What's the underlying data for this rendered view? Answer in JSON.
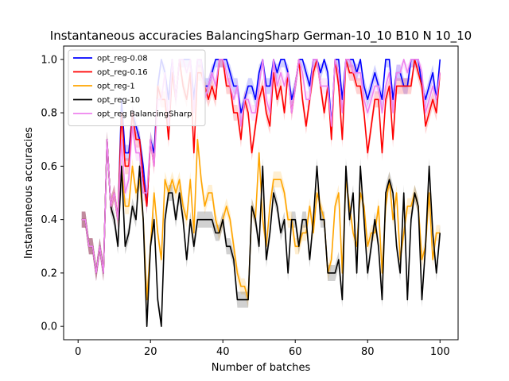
{
  "chart_data": {
    "type": "line",
    "title": "Instantaneous accuracies BalancingSharp German-10_10 B10 N 10_10",
    "xlabel": "Number of batches",
    "ylabel": "Instantaneous accuracies",
    "xlim": [
      -4,
      105
    ],
    "ylim": [
      -0.05,
      1.05
    ],
    "xticks": [
      0,
      20,
      40,
      60,
      80,
      100
    ],
    "yticks": [
      0.0,
      0.2,
      0.4,
      0.6,
      0.8,
      1.0
    ],
    "xtick_labels": [
      "0",
      "20",
      "40",
      "60",
      "80",
      "100"
    ],
    "ytick_labels": [
      "0.0",
      "0.2",
      "0.4",
      "0.6",
      "0.8",
      "1.0"
    ],
    "grid": false,
    "legend_position": "top-left",
    "colors": {
      "opt_reg-0.08": "#0000ff",
      "opt_reg-0.16": "#ff0000",
      "opt_reg-1": "#ffa500",
      "opt_reg-10": "#000000",
      "opt_reg BalancingSharp": "#ee82ee"
    },
    "series": [
      {
        "name": "opt_reg-0.08",
        "color": "#0000ff",
        "x": [
          1,
          2,
          3,
          4,
          5,
          6,
          7,
          8,
          9,
          10,
          11,
          12,
          13,
          14,
          15,
          16,
          17,
          18,
          19,
          20,
          21,
          22,
          23,
          24,
          25,
          26,
          27,
          28,
          29,
          30,
          31,
          32,
          33,
          34,
          35,
          36,
          37,
          38,
          39,
          40,
          41,
          42,
          43,
          44,
          45,
          46,
          47,
          48,
          49,
          50,
          51,
          52,
          53,
          54,
          55,
          56,
          57,
          58,
          59,
          60,
          61,
          62,
          63,
          64,
          65,
          66,
          67,
          68,
          69,
          70,
          71,
          72,
          73,
          74,
          75,
          76,
          77,
          78,
          79,
          80,
          81,
          82,
          83,
          84,
          85,
          86,
          87,
          88,
          89,
          90,
          91,
          92,
          93,
          94,
          95,
          96,
          97,
          98,
          99,
          100
        ],
        "y": [
          0.4,
          0.4,
          0.3,
          0.3,
          0.2,
          0.3,
          0.2,
          0.7,
          0.45,
          0.5,
          0.4,
          0.85,
          0.65,
          0.65,
          0.8,
          0.75,
          0.7,
          0.6,
          0.45,
          0.7,
          0.65,
          0.9,
          1.0,
          0.95,
          0.85,
          1.0,
          0.85,
          1.0,
          1.0,
          1.0,
          1.0,
          0.85,
          1.0,
          1.0,
          0.9,
          0.9,
          0.95,
          1.0,
          1.0,
          1.0,
          1.0,
          0.95,
          0.9,
          0.9,
          0.8,
          0.85,
          0.9,
          0.9,
          0.85,
          0.95,
          1.0,
          0.9,
          0.9,
          1.0,
          0.95,
          1.0,
          1.0,
          0.95,
          0.85,
          0.9,
          1.0,
          1.0,
          0.95,
          0.9,
          1.0,
          1.0,
          0.95,
          1.0,
          0.95,
          0.75,
          1.0,
          1.0,
          0.85,
          1.0,
          1.0,
          1.0,
          0.95,
          1.0,
          0.9,
          0.85,
          0.9,
          0.95,
          0.9,
          0.85,
          1.0,
          1.0,
          0.85,
          0.95,
          0.95,
          0.9,
          0.9,
          1.0,
          1.0,
          1.0,
          0.9,
          0.85,
          0.9,
          0.95,
          0.85,
          1.0
        ]
      },
      {
        "name": "opt_reg-0.16",
        "color": "#ff0000",
        "x": [
          1,
          2,
          3,
          4,
          5,
          6,
          7,
          8,
          9,
          10,
          11,
          12,
          13,
          14,
          15,
          16,
          17,
          18,
          19,
          20,
          21,
          22,
          23,
          24,
          25,
          26,
          27,
          28,
          29,
          30,
          31,
          32,
          33,
          34,
          35,
          36,
          37,
          38,
          39,
          40,
          41,
          42,
          43,
          44,
          45,
          46,
          47,
          48,
          49,
          50,
          51,
          52,
          53,
          54,
          55,
          56,
          57,
          58,
          59,
          60,
          61,
          62,
          63,
          64,
          65,
          66,
          67,
          68,
          69,
          70,
          71,
          72,
          73,
          74,
          75,
          76,
          77,
          78,
          79,
          80,
          81,
          82,
          83,
          84,
          85,
          86,
          87,
          88,
          89,
          90,
          91,
          92,
          93,
          94,
          95,
          96,
          97,
          98,
          99,
          100
        ],
        "y": [
          0.4,
          0.4,
          0.3,
          0.3,
          0.2,
          0.3,
          0.2,
          0.7,
          0.45,
          0.5,
          0.4,
          0.8,
          0.6,
          0.6,
          0.8,
          0.7,
          0.7,
          0.55,
          0.45,
          0.7,
          0.6,
          0.9,
          0.85,
          0.85,
          0.7,
          0.95,
          0.85,
          1.0,
          0.9,
          0.85,
          0.95,
          0.65,
          0.95,
          0.95,
          0.9,
          0.85,
          0.9,
          0.85,
          1.0,
          1.0,
          0.9,
          0.9,
          0.8,
          0.8,
          0.7,
          0.85,
          0.8,
          0.65,
          0.75,
          0.85,
          0.9,
          0.8,
          0.75,
          0.95,
          0.85,
          0.9,
          0.8,
          0.95,
          0.8,
          0.9,
          1.0,
          0.85,
          0.75,
          0.85,
          0.95,
          1.0,
          0.9,
          0.8,
          0.9,
          0.7,
          1.0,
          0.9,
          0.7,
          1.0,
          0.95,
          0.95,
          0.9,
          0.9,
          0.8,
          0.65,
          0.75,
          0.85,
          0.85,
          0.65,
          0.85,
          0.9,
          0.7,
          0.9,
          0.9,
          0.9,
          0.9,
          0.9,
          1.0,
          0.95,
          0.9,
          0.75,
          0.8,
          0.85,
          0.8,
          0.95
        ]
      },
      {
        "name": "opt_reg-1",
        "color": "#ffa500",
        "x": [
          1,
          2,
          3,
          4,
          5,
          6,
          7,
          8,
          9,
          10,
          11,
          12,
          13,
          14,
          15,
          16,
          17,
          18,
          19,
          20,
          21,
          22,
          23,
          24,
          25,
          26,
          27,
          28,
          29,
          30,
          31,
          32,
          33,
          34,
          35,
          36,
          37,
          38,
          39,
          40,
          41,
          42,
          43,
          44,
          45,
          46,
          47,
          48,
          49,
          50,
          51,
          52,
          53,
          54,
          55,
          56,
          57,
          58,
          59,
          60,
          61,
          62,
          63,
          64,
          65,
          66,
          67,
          68,
          69,
          70,
          71,
          72,
          73,
          74,
          75,
          76,
          77,
          78,
          79,
          80,
          81,
          82,
          83,
          84,
          85,
          86,
          87,
          88,
          89,
          90,
          91,
          92,
          93,
          94,
          95,
          96,
          97,
          98,
          99,
          100
        ],
        "y": [
          0.4,
          0.4,
          0.3,
          0.3,
          0.2,
          0.3,
          0.2,
          0.7,
          0.45,
          0.5,
          0.4,
          0.6,
          0.45,
          0.45,
          0.6,
          0.5,
          0.55,
          0.4,
          0.1,
          0.3,
          0.5,
          0.35,
          0.25,
          0.55,
          0.5,
          0.55,
          0.5,
          0.55,
          0.45,
          0.4,
          0.55,
          0.35,
          0.7,
          0.55,
          0.45,
          0.5,
          0.5,
          0.4,
          0.35,
          0.4,
          0.45,
          0.4,
          0.3,
          0.2,
          0.15,
          0.15,
          0.1,
          0.45,
          0.4,
          0.65,
          0.4,
          0.3,
          0.45,
          0.55,
          0.55,
          0.55,
          0.5,
          0.4,
          0.4,
          0.3,
          0.3,
          0.35,
          0.35,
          0.45,
          0.35,
          0.5,
          0.45,
          0.4,
          0.2,
          0.25,
          0.45,
          0.5,
          0.2,
          0.55,
          0.45,
          0.35,
          0.3,
          0.5,
          0.45,
          0.3,
          0.35,
          0.35,
          0.45,
          0.2,
          0.45,
          0.55,
          0.4,
          0.5,
          0.25,
          0.35,
          0.45,
          0.45,
          0.5,
          0.45,
          0.25,
          0.3,
          0.5,
          0.25,
          0.35,
          0.35
        ]
      },
      {
        "name": "opt_reg-10",
        "color": "#000000",
        "x": [
          1,
          2,
          3,
          4,
          5,
          6,
          7,
          8,
          9,
          10,
          11,
          12,
          13,
          14,
          15,
          16,
          17,
          18,
          19,
          20,
          21,
          22,
          23,
          24,
          25,
          26,
          27,
          28,
          29,
          30,
          31,
          32,
          33,
          34,
          35,
          36,
          37,
          38,
          39,
          40,
          41,
          42,
          43,
          44,
          45,
          46,
          47,
          48,
          49,
          50,
          51,
          52,
          53,
          54,
          55,
          56,
          57,
          58,
          59,
          60,
          61,
          62,
          63,
          64,
          65,
          66,
          67,
          68,
          69,
          70,
          71,
          72,
          73,
          74,
          75,
          76,
          77,
          78,
          79,
          80,
          81,
          82,
          83,
          84,
          85,
          86,
          87,
          88,
          89,
          90,
          91,
          92,
          93,
          94,
          95,
          96,
          97,
          98,
          99,
          100
        ],
        "y": [
          0.4,
          0.4,
          0.3,
          0.3,
          0.2,
          0.3,
          0.2,
          0.7,
          0.45,
          0.4,
          0.3,
          0.6,
          0.3,
          0.35,
          0.45,
          0.4,
          0.6,
          0.4,
          0.0,
          0.3,
          0.4,
          0.1,
          0.0,
          0.4,
          0.5,
          0.5,
          0.4,
          0.5,
          0.4,
          0.25,
          0.4,
          0.3,
          0.4,
          0.4,
          0.4,
          0.4,
          0.4,
          0.35,
          0.35,
          0.4,
          0.3,
          0.3,
          0.25,
          0.1,
          0.1,
          0.1,
          0.1,
          0.45,
          0.4,
          0.3,
          0.6,
          0.25,
          0.35,
          0.5,
          0.45,
          0.35,
          0.4,
          0.2,
          0.4,
          0.4,
          0.3,
          0.4,
          0.4,
          0.25,
          0.4,
          0.6,
          0.4,
          0.4,
          0.2,
          0.2,
          0.2,
          0.25,
          0.1,
          0.6,
          0.4,
          0.5,
          0.2,
          0.6,
          0.4,
          0.2,
          0.3,
          0.4,
          0.3,
          0.1,
          0.5,
          0.55,
          0.5,
          0.3,
          0.2,
          0.5,
          0.1,
          0.4,
          0.5,
          0.45,
          0.1,
          0.3,
          0.6,
          0.35,
          0.2,
          0.35
        ]
      },
      {
        "name": "opt_reg BalancingSharp",
        "color": "#ee82ee",
        "x": [
          1,
          2,
          3,
          4,
          5,
          6,
          7,
          8,
          9,
          10,
          11,
          12,
          13,
          14,
          15,
          16,
          17,
          18,
          19,
          20,
          21,
          22,
          23,
          24,
          25,
          26,
          27,
          28,
          29,
          30,
          31,
          32,
          33,
          34,
          35,
          36,
          37,
          38,
          39,
          40,
          41,
          42,
          43,
          44,
          45,
          46,
          47,
          48,
          49,
          50,
          51,
          52,
          53,
          54,
          55,
          56,
          57,
          58,
          59,
          60,
          61,
          62,
          63,
          64,
          65,
          66,
          67,
          68,
          69,
          70,
          71,
          72,
          73,
          74,
          75,
          76,
          77,
          78,
          79,
          80,
          81,
          82,
          83,
          84,
          85,
          86,
          87,
          88,
          89,
          90,
          91,
          92,
          93,
          94,
          95,
          96,
          97,
          98,
          99,
          100
        ],
        "y": [
          0.4,
          0.4,
          0.3,
          0.3,
          0.2,
          0.3,
          0.2,
          0.7,
          0.45,
          0.5,
          0.4,
          0.7,
          0.5,
          0.55,
          0.75,
          0.65,
          0.65,
          0.5,
          0.5,
          0.7,
          0.6,
          0.85,
          0.85,
          0.95,
          0.75,
          1.0,
          0.85,
          1.0,
          1.0,
          0.95,
          1.0,
          0.8,
          1.0,
          1.0,
          0.85,
          0.9,
          0.95,
          0.9,
          1.0,
          1.0,
          0.95,
          0.9,
          0.85,
          0.9,
          0.75,
          0.85,
          0.85,
          0.8,
          0.8,
          0.9,
          1.0,
          0.85,
          0.8,
          1.0,
          0.9,
          0.95,
          0.9,
          0.95,
          0.8,
          0.9,
          1.0,
          0.95,
          0.85,
          0.85,
          1.0,
          1.0,
          0.9,
          0.9,
          0.9,
          0.75,
          1.0,
          0.95,
          0.8,
          1.0,
          1.0,
          0.95,
          0.95,
          0.95,
          0.85,
          0.8,
          0.85,
          0.9,
          0.9,
          0.8,
          0.9,
          0.95,
          0.8,
          0.95,
          0.95,
          1.0,
          0.95,
          1.0,
          1.0,
          1.0,
          0.95,
          0.8,
          0.85,
          0.9,
          0.85,
          0.95
        ]
      }
    ]
  }
}
